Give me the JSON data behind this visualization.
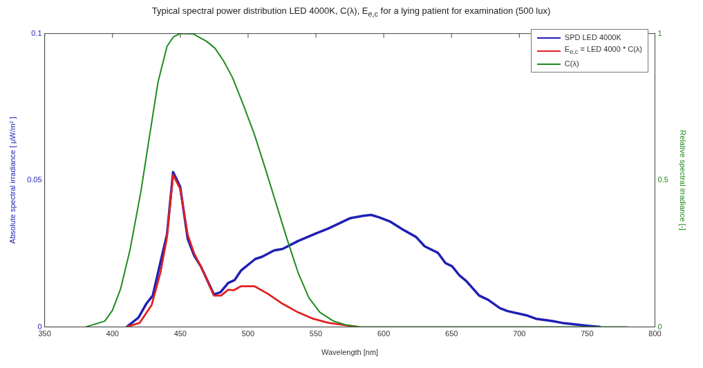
{
  "chart_data": {
    "type": "line",
    "title": "Typical spectral power distribution LED 4000K, C(λ), E$_{e,c}$ for a lying patient for examination (500 lux)",
    "xlabel": "Wavelength [nm]",
    "ylabel": "Absolute spectral irradiance [ μW/m² ]",
    "y2label": "Relative spectral irradiance [-]",
    "xlim": [
      350,
      800
    ],
    "xticks": [
      350,
      400,
      450,
      500,
      550,
      600,
      650,
      700,
      750,
      800
    ],
    "ylim": [
      0,
      0.1
    ],
    "yticks": [
      0,
      0.05,
      0.1
    ],
    "y2lim": [
      0,
      1
    ],
    "y2ticks": [
      0,
      0.5,
      1
    ],
    "grid": false,
    "legend": "top right",
    "marker": "none",
    "line_style": "solid",
    "series": [
      {
        "name": "SPD LED 4000K",
        "color": "#1f1fb4",
        "x": [
          410.4,
          419.2,
          424.9,
          429.7,
          435.4,
          440.2,
          444.7,
          449.9,
          455.5,
          460.3,
          465.1,
          474.8,
          479.6,
          485.3,
          490.1,
          494.9,
          505.4,
          510.2,
          519.1,
          525.5,
          536.8,
          549.7,
          559.3,
          575.4,
          585.1,
          590.7,
          596.4,
          604.4,
          614.1,
          623.8,
          630.2,
          639.9,
          645.5,
          650.4,
          656,
          660.8,
          670.4,
          676.9,
          685.7,
          691.4,
          705.9,
          712.3,
          723.6,
          731.6,
          750.9,
          759.8
        ],
        "values": [
          0,
          0.0032,
          0.0079,
          0.0107,
          0.0221,
          0.0315,
          0.0528,
          0.0478,
          0.03,
          0.0243,
          0.0207,
          0.0111,
          0.0118,
          0.015,
          0.016,
          0.0193,
          0.0232,
          0.0239,
          0.0261,
          0.0266,
          0.0293,
          0.0318,
          0.0336,
          0.0371,
          0.0379,
          0.0382,
          0.0374,
          0.036,
          0.0332,
          0.0307,
          0.0275,
          0.0253,
          0.0218,
          0.0207,
          0.0175,
          0.0157,
          0.0107,
          0.0093,
          0.0064,
          0.0054,
          0.0039,
          0.0028,
          0.0021,
          0.0014,
          0.0004,
          0
        ]
      },
      {
        "name": "E$_{e,c}$ = LED 4000 * C(λ)",
        "color": "#e02020",
        "x": [
          410.4,
          420,
          428.9,
          435.4,
          440,
          444.7,
          449.9,
          455.5,
          460.3,
          465.1,
          474.8,
          480.1,
          485.3,
          489.3,
          494.9,
          504.6,
          514.3,
          525.5,
          536.8,
          548,
          559.3,
          581.9
        ],
        "values": [
          0,
          0.0014,
          0.0075,
          0.0186,
          0.03,
          0.0518,
          0.0471,
          0.0314,
          0.025,
          0.0207,
          0.0107,
          0.0107,
          0.0127,
          0.0125,
          0.0139,
          0.0139,
          0.0114,
          0.0079,
          0.005,
          0.0028,
          0.0014,
          0
        ]
      },
      {
        "name": "C(λ)",
        "color": "#1e8a1e",
        "axis": "y2",
        "x": [
          380,
          394.3,
          400,
          406,
          412.8,
          420.9,
          427.3,
          433.6,
          440.2,
          445,
          449.9,
          459.5,
          469.2,
          475.6,
          482,
          488.5,
          496.5,
          504.6,
          512.7,
          520.7,
          528.7,
          536.8,
          544.8,
          552.9,
          562.6,
          572.2,
          581.9,
          780
        ],
        "values": [
          0,
          0.02,
          0.057,
          0.13,
          0.26,
          0.46,
          0.65,
          0.835,
          0.956,
          0.989,
          1,
          0.999,
          0.974,
          0.95,
          0.906,
          0.85,
          0.757,
          0.657,
          0.54,
          0.42,
          0.3,
          0.186,
          0.1,
          0.05,
          0.021,
          0.007,
          0,
          0
        ]
      }
    ]
  }
}
